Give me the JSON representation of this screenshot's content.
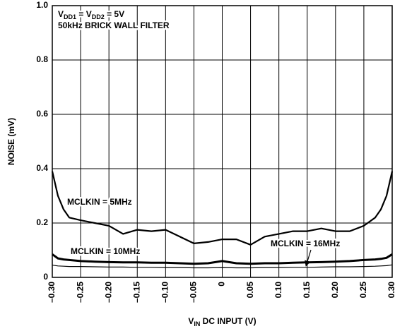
{
  "chart_data": {
    "type": "line",
    "title_lines": [
      [
        "V",
        "DD1",
        " = V",
        "DD2",
        " = 5V"
      ],
      [
        "50kHz BRICK WALL FILTER"
      ]
    ],
    "xlabel": [
      "V",
      "IN",
      " DC INPUT (V)"
    ],
    "ylabel": "NOISE (mV)",
    "x": [
      -0.3,
      -0.29,
      -0.28,
      -0.27,
      -0.25,
      -0.225,
      -0.2,
      -0.175,
      -0.15,
      -0.125,
      -0.1,
      -0.075,
      -0.05,
      -0.025,
      0,
      0.025,
      0.05,
      0.075,
      0.1,
      0.125,
      0.15,
      0.175,
      0.2,
      0.225,
      0.25,
      0.27,
      0.28,
      0.29,
      0.3
    ],
    "series": [
      {
        "name": "MCLKIN = 5MHz",
        "color": "#000000",
        "line_width": 2.2,
        "values": [
          0.39,
          0.3,
          0.25,
          0.22,
          0.21,
          0.2,
          0.19,
          0.16,
          0.175,
          0.17,
          0.175,
          0.15,
          0.125,
          0.13,
          0.14,
          0.14,
          0.12,
          0.15,
          0.16,
          0.17,
          0.17,
          0.18,
          0.17,
          0.17,
          0.19,
          0.22,
          0.25,
          0.3,
          0.39
        ]
      },
      {
        "name": "MCLKIN = 10MHz",
        "color": "#000000",
        "line_width": 3,
        "values": [
          0.085,
          0.07,
          0.066,
          0.064,
          0.06,
          0.058,
          0.056,
          0.055,
          0.055,
          0.054,
          0.054,
          0.052,
          0.05,
          0.052,
          0.06,
          0.052,
          0.05,
          0.052,
          0.052,
          0.054,
          0.055,
          0.056,
          0.058,
          0.06,
          0.064,
          0.066,
          0.068,
          0.072,
          0.085
        ]
      },
      {
        "name": "MCLKIN = 16MHz",
        "color": "#000000",
        "line_width": 1.2,
        "values": [
          0.045,
          0.042,
          0.041,
          0.04,
          0.04,
          0.039,
          0.038,
          0.038,
          0.037,
          0.037,
          0.036,
          0.036,
          0.035,
          0.035,
          0.036,
          0.035,
          0.035,
          0.036,
          0.036,
          0.037,
          0.037,
          0.038,
          0.039,
          0.039,
          0.04,
          0.041,
          0.042,
          0.043,
          0.046
        ]
      }
    ],
    "xlim": [
      -0.3,
      0.3
    ],
    "xticks": [
      {
        "value": -0.3,
        "label": "–0.30"
      },
      {
        "value": -0.25,
        "label": "–0.25"
      },
      {
        "value": -0.2,
        "label": "–0.20"
      },
      {
        "value": -0.15,
        "label": "–0.15"
      },
      {
        "value": -0.1,
        "label": "–0.10"
      },
      {
        "value": -0.05,
        "label": "–0.05"
      },
      0,
      0.05,
      {
        "value": 0.1,
        "label": "0.10"
      },
      0.15,
      {
        "value": 0.2,
        "label": "0.20"
      },
      0.25,
      {
        "value": 0.3,
        "label": "0.30"
      }
    ],
    "ylim": [
      0,
      1
    ],
    "yticks": [
      0,
      0.2,
      0.4,
      0.6,
      0.8,
      {
        "value": 1,
        "label": "1.0"
      }
    ],
    "grid": true
  }
}
